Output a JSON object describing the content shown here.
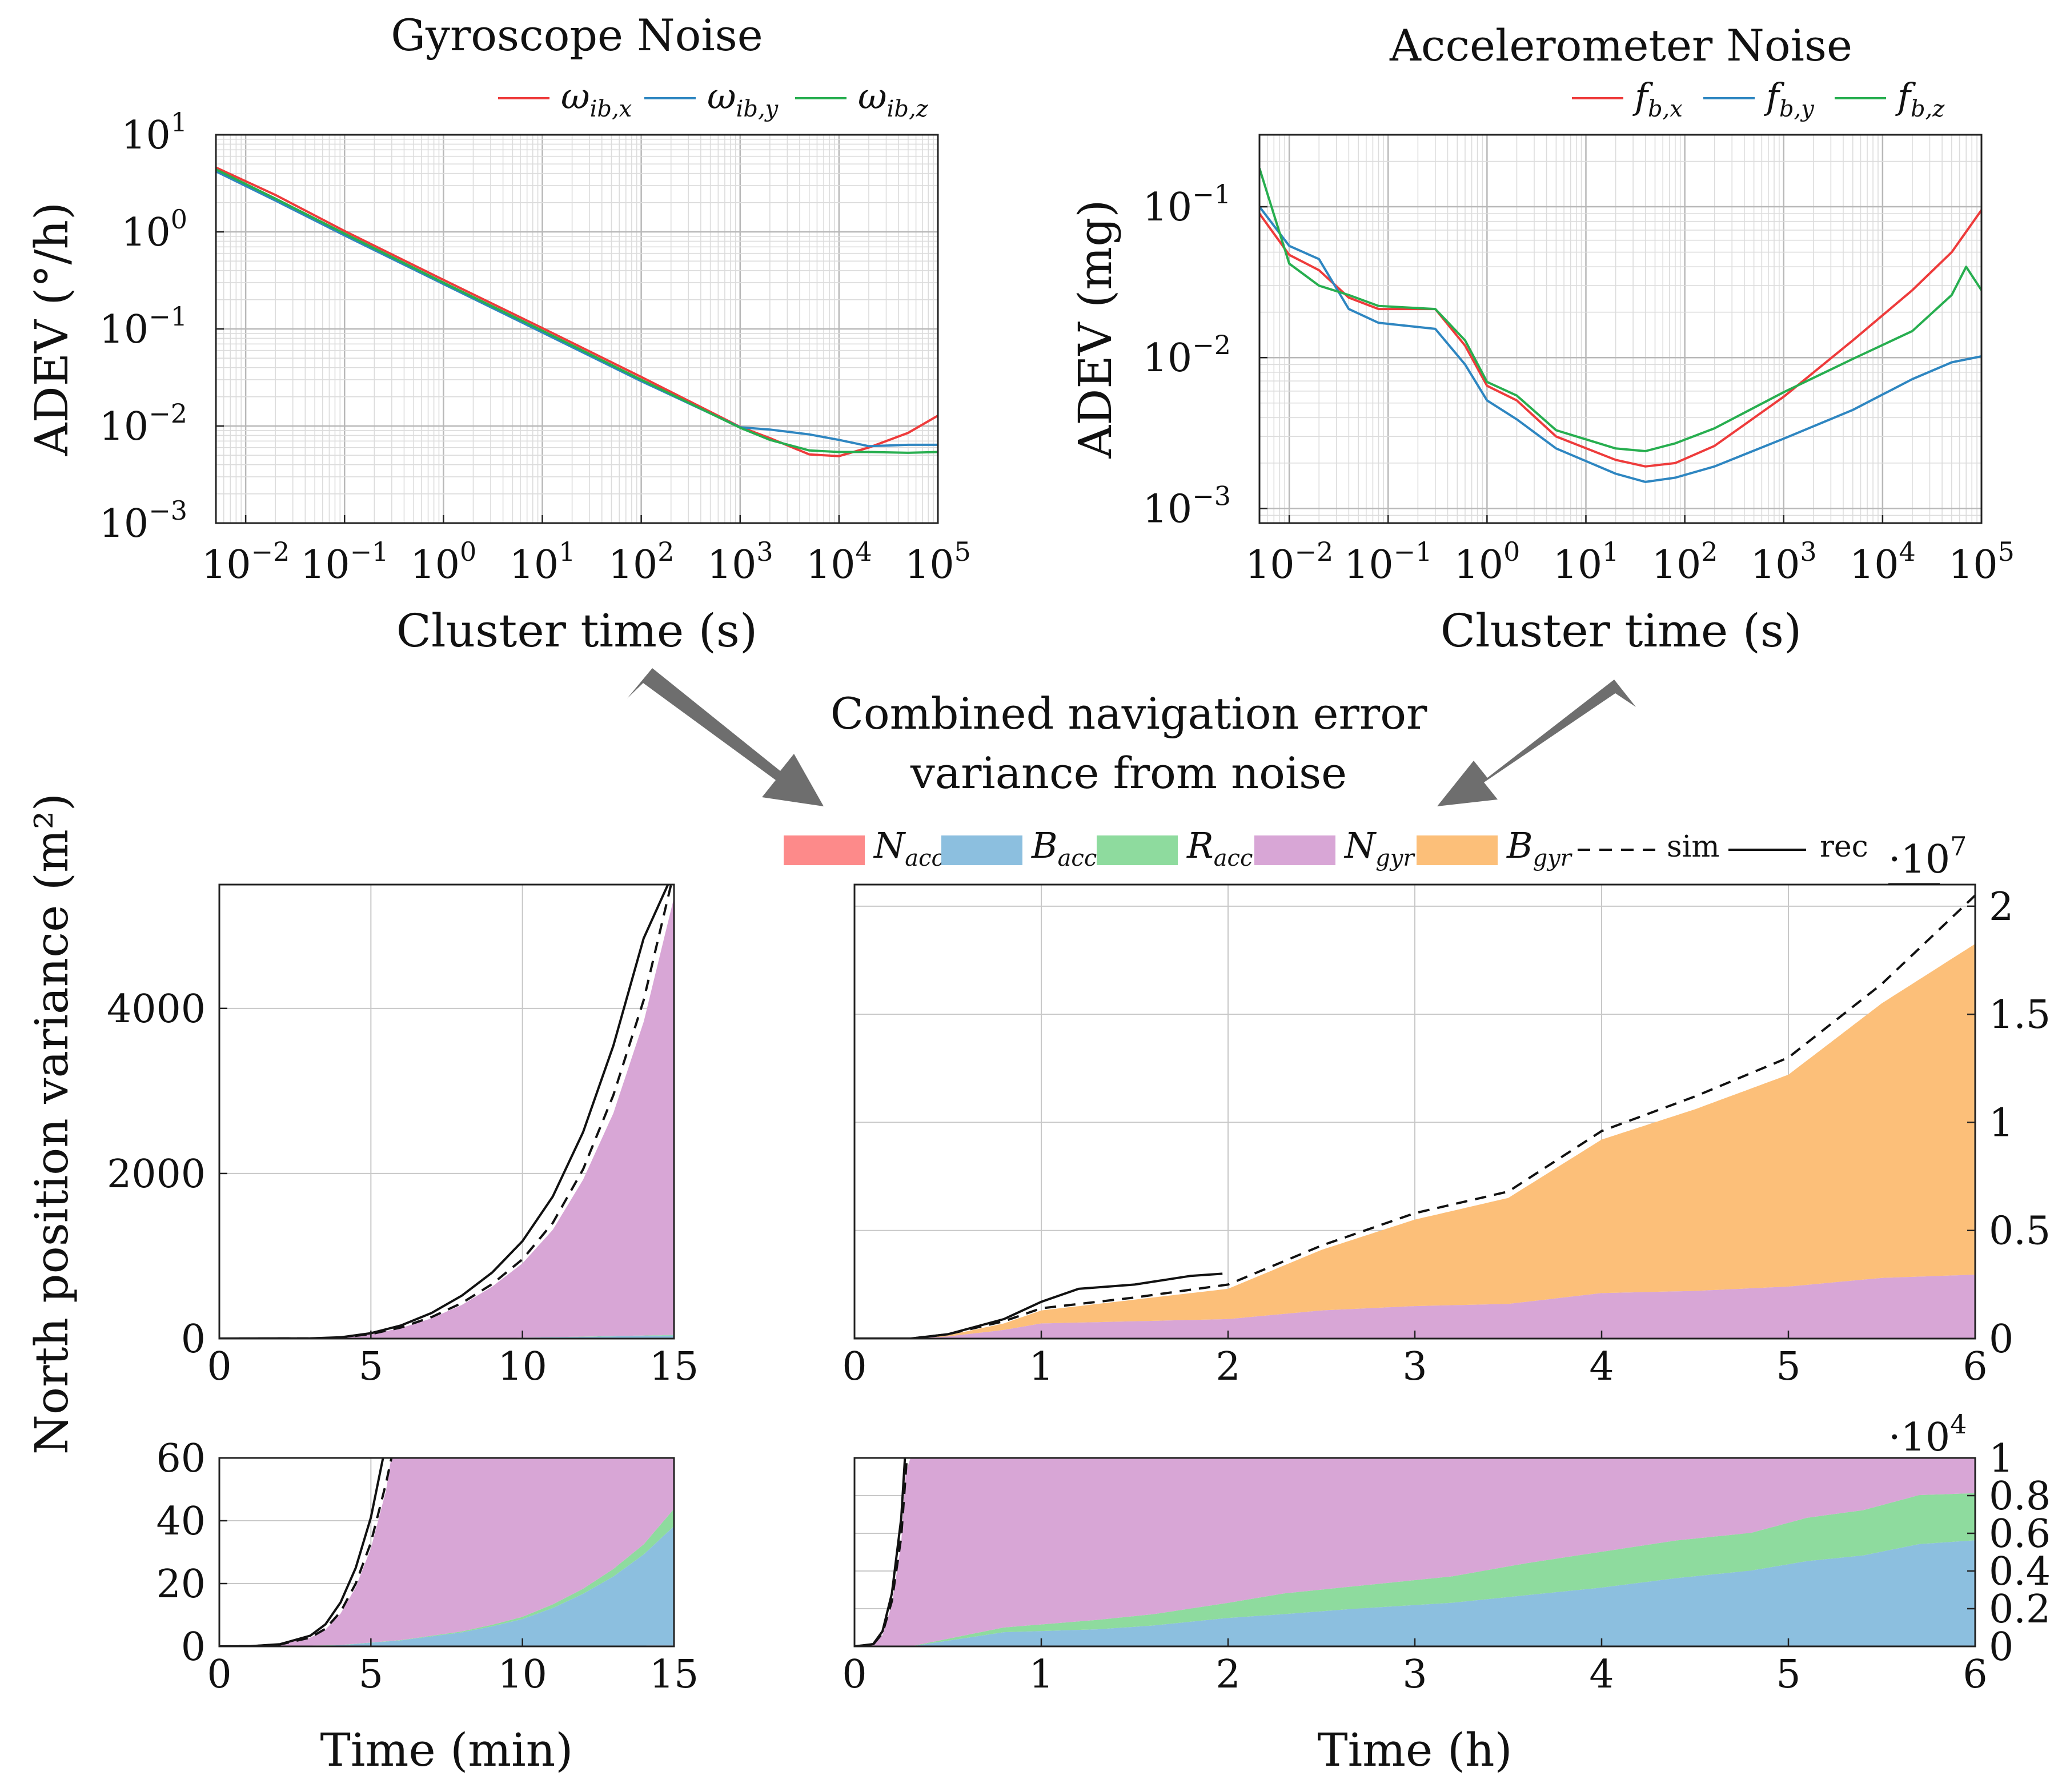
{
  "colors": {
    "red": "#ee3b3b",
    "blue": "#2e86c1",
    "green": "#27ae4f",
    "fill_n_acc": "#fd8a8a",
    "fill_b_acc": "#8cbfdf",
    "fill_r_acc": "#8edb9e",
    "fill_n_gyr": "#d8a6d6",
    "fill_b_gyr": "#fcbf79",
    "arrow": "#6e6e6e"
  },
  "center_text": {
    "line1": "Combined navigation error",
    "line2": "variance from noise"
  },
  "legend_bottom": {
    "items": [
      {
        "main": "N",
        "sub": "acc",
        "color": "#fd8a8a"
      },
      {
        "main": "B",
        "sub": "acc",
        "color": "#8cbfdf"
      },
      {
        "main": "R",
        "sub": "acc",
        "color": "#8edb9e"
      },
      {
        "main": "N",
        "sub": "gyr",
        "color": "#d8a6d6"
      },
      {
        "main": "B",
        "sub": "gyr",
        "color": "#fcbf79"
      }
    ],
    "sim_label": "sim",
    "rec_label": "rec"
  },
  "chart_data": [
    {
      "id": "gyro",
      "type": "line",
      "title": "Gyroscope Noise",
      "xlabel": "Cluster time (s)",
      "ylabel": "ADEV (°/h)",
      "xscale": "log",
      "yscale": "log",
      "xlim": [
        0.005,
        100000
      ],
      "ylim": [
        0.001,
        10
      ],
      "x_ticks": [
        {
          "e": "−2",
          "v": 0.01
        },
        {
          "e": "−1",
          "v": 0.1
        },
        {
          "e": "0",
          "v": 1
        },
        {
          "e": "1",
          "v": 10
        },
        {
          "e": "2",
          "v": 100
        },
        {
          "e": "3",
          "v": 1000
        },
        {
          "e": "4",
          "v": 10000
        },
        {
          "e": "5",
          "v": 100000
        }
      ],
      "y_ticks": [
        {
          "e": "−3",
          "v": 0.001
        },
        {
          "e": "−2",
          "v": 0.01
        },
        {
          "e": "−1",
          "v": 0.1
        },
        {
          "e": "0",
          "v": 1
        },
        {
          "e": "1",
          "v": 10
        }
      ],
      "legend": [
        {
          "main": "ω",
          "sub": "ib,x",
          "color": "#ee3b3b"
        },
        {
          "main": "ω",
          "sub": "ib,y",
          "color": "#2e86c1"
        },
        {
          "main": "ω",
          "sub": "ib,z",
          "color": "#27ae4f"
        }
      ],
      "series": [
        {
          "name": "ω_ib,x",
          "color": "#ee3b3b",
          "x": [
            0.005,
            0.02,
            0.1,
            1,
            10,
            100,
            1000,
            2000,
            5000,
            10000,
            20000,
            50000,
            100000
          ],
          "y": [
            4.6,
            2.4,
            1.02,
            0.32,
            0.102,
            0.032,
            0.0098,
            0.0075,
            0.0051,
            0.0049,
            0.006,
            0.0085,
            0.0128
          ]
        },
        {
          "name": "ω_ib,y",
          "color": "#2e86c1",
          "x": [
            0.005,
            0.02,
            0.1,
            1,
            10,
            100,
            1000,
            2000,
            5000,
            10000,
            20000,
            50000,
            100000
          ],
          "y": [
            4.2,
            2.1,
            0.92,
            0.29,
            0.092,
            0.029,
            0.0097,
            0.0092,
            0.0082,
            0.0072,
            0.0062,
            0.0064,
            0.0064
          ]
        },
        {
          "name": "ω_ib,z",
          "color": "#27ae4f",
          "x": [
            0.005,
            0.02,
            0.1,
            1,
            10,
            100,
            1000,
            2000,
            5000,
            10000,
            20000,
            50000,
            100000
          ],
          "y": [
            4.4,
            2.2,
            0.96,
            0.3,
            0.096,
            0.03,
            0.0096,
            0.0072,
            0.0056,
            0.0054,
            0.0054,
            0.0053,
            0.0054
          ]
        }
      ]
    },
    {
      "id": "accel",
      "type": "line",
      "title": "Accelerometer Noise",
      "xlabel": "Cluster time (s)",
      "ylabel": "ADEV (mg)",
      "xscale": "log",
      "yscale": "log",
      "xlim": [
        0.005,
        100000
      ],
      "ylim": [
        0.0008,
        0.3
      ],
      "x_ticks": [
        {
          "e": "−2",
          "v": 0.01
        },
        {
          "e": "−1",
          "v": 0.1
        },
        {
          "e": "0",
          "v": 1
        },
        {
          "e": "1",
          "v": 10
        },
        {
          "e": "2",
          "v": 100
        },
        {
          "e": "3",
          "v": 1000
        },
        {
          "e": "4",
          "v": 10000
        },
        {
          "e": "5",
          "v": 100000
        }
      ],
      "y_ticks": [
        {
          "e": "−3",
          "v": 0.001
        },
        {
          "e": "−2",
          "v": 0.01
        },
        {
          "e": "−1",
          "v": 0.1
        }
      ],
      "legend": [
        {
          "main": "f",
          "sub": "b,x",
          "color": "#ee3b3b"
        },
        {
          "main": "f",
          "sub": "b,y",
          "color": "#2e86c1"
        },
        {
          "main": "f",
          "sub": "b,z",
          "color": "#27ae4f"
        }
      ],
      "series": [
        {
          "name": "f_b,x",
          "color": "#ee3b3b",
          "x": [
            0.005,
            0.01,
            0.02,
            0.04,
            0.08,
            0.3,
            0.6,
            1,
            2,
            5,
            20,
            40,
            80,
            200,
            1000,
            5000,
            20000,
            50000,
            100000
          ],
          "y": [
            0.09,
            0.048,
            0.038,
            0.025,
            0.021,
            0.021,
            0.012,
            0.0065,
            0.0052,
            0.003,
            0.0021,
            0.0019,
            0.002,
            0.0026,
            0.0055,
            0.013,
            0.028,
            0.05,
            0.095
          ]
        },
        {
          "name": "f_b,y",
          "color": "#2e86c1",
          "x": [
            0.005,
            0.01,
            0.02,
            0.04,
            0.08,
            0.3,
            0.6,
            1,
            2,
            5,
            20,
            40,
            80,
            200,
            1000,
            5000,
            20000,
            50000,
            100000
          ],
          "y": [
            0.1,
            0.055,
            0.045,
            0.021,
            0.017,
            0.0155,
            0.009,
            0.0052,
            0.0039,
            0.0025,
            0.0017,
            0.0015,
            0.0016,
            0.0019,
            0.0029,
            0.0045,
            0.0072,
            0.0093,
            0.0102
          ]
        },
        {
          "name": "f_b,z",
          "color": "#27ae4f",
          "x": [
            0.005,
            0.01,
            0.02,
            0.04,
            0.08,
            0.3,
            0.6,
            1,
            2,
            5,
            20,
            40,
            80,
            200,
            1000,
            5000,
            20000,
            50000,
            70000,
            100000
          ],
          "y": [
            0.18,
            0.042,
            0.03,
            0.026,
            0.022,
            0.021,
            0.013,
            0.0069,
            0.0056,
            0.0033,
            0.0025,
            0.0024,
            0.0027,
            0.0034,
            0.0059,
            0.0098,
            0.015,
            0.026,
            0.04,
            0.028
          ]
        }
      ]
    },
    {
      "id": "top_left",
      "type": "area",
      "ylabel": "North position variance (m²)",
      "xlim": [
        0,
        15
      ],
      "ylim": [
        0,
        5500
      ],
      "x_ticks": [
        0,
        5,
        10,
        15
      ],
      "y_ticks": [
        0,
        2000,
        4000
      ],
      "stack": [
        {
          "name": "N_acc",
          "color": "#fd8a8a",
          "x": [
            0,
            15
          ],
          "y": [
            0,
            0
          ]
        },
        {
          "name": "B_acc",
          "color": "#8cbfdf",
          "x": [
            0,
            5,
            10,
            15
          ],
          "y": [
            0,
            2,
            10,
            38
          ]
        },
        {
          "name": "R_acc",
          "color": "#8edb9e",
          "x": [
            0,
            5,
            10,
            15
          ],
          "y": [
            0,
            0,
            1,
            6
          ]
        },
        {
          "name": "N_gyr",
          "color": "#d8a6d6",
          "x": [
            0,
            3,
            4,
            5,
            6,
            7,
            8,
            9,
            10,
            11,
            12,
            13,
            14,
            15
          ],
          "y": [
            0,
            2,
            10,
            50,
            125,
            240,
            400,
            620,
            900,
            1300,
            1900,
            2700,
            3800,
            5300
          ]
        }
      ],
      "sim": {
        "x": [
          0,
          3,
          4,
          5,
          6,
          7,
          8,
          9,
          10,
          11,
          12,
          13,
          14,
          15
        ],
        "y": [
          0,
          2,
          12,
          55,
          135,
          260,
          430,
          660,
          960,
          1400,
          2050,
          2950,
          4100,
          5650
        ]
      },
      "rec": {
        "x": [
          0,
          3,
          4,
          5,
          6,
          7,
          8,
          9,
          10,
          11,
          12,
          13,
          14,
          14.8
        ],
        "y": [
          0,
          3,
          15,
          65,
          160,
          310,
          520,
          800,
          1180,
          1720,
          2500,
          3550,
          4850,
          5500
        ]
      }
    },
    {
      "id": "top_right",
      "type": "area",
      "xlim": [
        0,
        6
      ],
      "ylim": [
        0,
        2.1
      ],
      "y_multiplier": "7",
      "x_ticks": [
        0,
        1,
        2,
        3,
        4,
        5,
        6
      ],
      "y_ticks": [
        0,
        0.5,
        1,
        1.5,
        2
      ],
      "stack": [
        {
          "name": "N_acc",
          "color": "#fd8a8a",
          "x": [
            0,
            6
          ],
          "y": [
            0,
            0
          ]
        },
        {
          "name": "B_acc",
          "color": "#8cbfdf",
          "x": [
            0,
            6
          ],
          "y": [
            0,
            0.0006
          ]
        },
        {
          "name": "R_acc",
          "color": "#8edb9e",
          "x": [
            0,
            6
          ],
          "y": [
            0,
            0.0002
          ]
        },
        {
          "name": "N_gyr",
          "color": "#d8a6d6",
          "x": [
            0,
            0.3,
            0.5,
            0.8,
            1,
            1.5,
            2,
            2.5,
            3,
            3.5,
            4,
            4.5,
            5,
            5.5,
            6
          ],
          "y": [
            0,
            0,
            0.01,
            0.04,
            0.07,
            0.08,
            0.09,
            0.13,
            0.15,
            0.16,
            0.21,
            0.22,
            0.24,
            0.28,
            0.295
          ]
        },
        {
          "name": "B_gyr",
          "color": "#fcbf79",
          "x": [
            0,
            0.3,
            0.5,
            0.8,
            1,
            1.5,
            2,
            2.5,
            3,
            3.5,
            4,
            4.5,
            5,
            5.5,
            6
          ],
          "y": [
            0,
            0,
            0.005,
            0.03,
            0.06,
            0.1,
            0.14,
            0.28,
            0.4,
            0.49,
            0.71,
            0.84,
            0.98,
            1.27,
            1.53
          ]
        }
      ],
      "sim": {
        "x": [
          0,
          0.3,
          0.5,
          0.8,
          1,
          1.5,
          2,
          2.5,
          3,
          3.5,
          4,
          4.5,
          5,
          5.5,
          6
        ],
        "y": [
          0,
          0,
          0.02,
          0.08,
          0.14,
          0.19,
          0.25,
          0.43,
          0.58,
          0.68,
          0.96,
          1.12,
          1.3,
          1.64,
          2.05
        ]
      },
      "rec": {
        "x": [
          0,
          0.3,
          0.5,
          0.8,
          1,
          1.2,
          1.5,
          1.8,
          1.97
        ],
        "y": [
          0,
          0,
          0.02,
          0.09,
          0.17,
          0.23,
          0.25,
          0.29,
          0.3
        ]
      }
    },
    {
      "id": "bottom_left",
      "type": "area",
      "xlabel": "Time (min)",
      "xlim": [
        0,
        15
      ],
      "ylim": [
        0,
        60
      ],
      "x_ticks": [
        0,
        5,
        10,
        15
      ],
      "y_ticks": [
        0,
        20,
        40,
        60
      ],
      "stack": [
        {
          "name": "N_acc",
          "color": "#fd8a8a",
          "x": [
            0,
            15
          ],
          "y": [
            0,
            0.3
          ]
        },
        {
          "name": "B_acc",
          "color": "#8cbfdf",
          "x": [
            0,
            2,
            4,
            6,
            8,
            9,
            10,
            11,
            12,
            13,
            14,
            15
          ],
          "y": [
            0,
            0,
            0.3,
            1.8,
            4.3,
            6.2,
            8.5,
            12,
            16.5,
            22,
            29,
            38
          ]
        },
        {
          "name": "R_acc",
          "color": "#8edb9e",
          "x": [
            0,
            6,
            8,
            10,
            12,
            14,
            15
          ],
          "y": [
            0,
            0.1,
            0.3,
            0.7,
            1.6,
            3.2,
            5.5
          ]
        },
        {
          "name": "N_gyr",
          "color": "#d8a6d6",
          "x": [
            0,
            1,
            2,
            3,
            3.5,
            4,
            4.5,
            5,
            5.5,
            5.7,
            15
          ],
          "y": [
            0,
            0.05,
            0.5,
            2.5,
            5,
            10,
            18,
            30,
            48,
            60,
            60
          ]
        }
      ],
      "sim": {
        "x": [
          0,
          1,
          2,
          3,
          3.5,
          4,
          4.5,
          5,
          5.5,
          5.7
        ],
        "y": [
          0,
          0.05,
          0.6,
          2.8,
          5.6,
          11,
          20,
          33,
          52,
          61
        ]
      },
      "rec": {
        "x": [
          0,
          1,
          2,
          3,
          3.5,
          4,
          4.5,
          5,
          5.4
        ],
        "y": [
          0,
          0.06,
          0.7,
          3.4,
          7,
          14,
          25,
          41,
          60
        ]
      }
    },
    {
      "id": "bottom_right",
      "type": "area",
      "xlabel": "Time (h)",
      "xlim": [
        0,
        6
      ],
      "ylim": [
        0,
        1
      ],
      "y_multiplier": "4",
      "x_ticks": [
        0,
        1,
        2,
        3,
        4,
        5,
        6
      ],
      "y_ticks": [
        0,
        0.2,
        0.4,
        0.6,
        0.8,
        1
      ],
      "stack": [
        {
          "name": "N_acc",
          "color": "#fd8a8a",
          "x": [
            0,
            6
          ],
          "y": [
            0,
            0.003
          ]
        },
        {
          "name": "B_acc",
          "color": "#8cbfdf",
          "x": [
            0,
            0.3,
            0.5,
            0.8,
            1.3,
            1.6,
            2,
            2.3,
            2.7,
            3.2,
            3.6,
            4,
            4.4,
            4.8,
            5.1,
            5.4,
            5.7,
            6
          ],
          "y": [
            0,
            0,
            0.03,
            0.075,
            0.09,
            0.11,
            0.15,
            0.17,
            0.2,
            0.23,
            0.27,
            0.31,
            0.36,
            0.4,
            0.45,
            0.48,
            0.54,
            0.56
          ]
        },
        {
          "name": "R_acc",
          "color": "#8edb9e",
          "x": [
            0,
            0.3,
            0.5,
            0.8,
            1.3,
            1.6,
            2,
            2.3,
            2.7,
            3.2,
            3.6,
            4,
            4.4,
            4.8,
            5.1,
            5.4,
            5.7,
            6
          ],
          "y": [
            0,
            0,
            0.01,
            0.025,
            0.05,
            0.06,
            0.08,
            0.11,
            0.12,
            0.14,
            0.17,
            0.19,
            0.2,
            0.2,
            0.23,
            0.24,
            0.26,
            0.25
          ]
        },
        {
          "name": "N_gyr",
          "color": "#d8a6d6",
          "x": [
            0,
            0.1,
            0.15,
            0.2,
            0.25,
            0.28,
            6
          ],
          "y": [
            0,
            0.01,
            0.06,
            0.22,
            0.55,
            1,
            1
          ]
        }
      ],
      "sim": {
        "x": [
          0,
          0.1,
          0.15,
          0.2,
          0.25,
          0.28
        ],
        "y": [
          0,
          0.01,
          0.07,
          0.24,
          0.58,
          1
        ]
      },
      "rec": {
        "x": [
          0,
          0.1,
          0.15,
          0.2,
          0.25,
          0.27
        ],
        "y": [
          0,
          0.012,
          0.08,
          0.28,
          0.68,
          1
        ]
      }
    }
  ]
}
